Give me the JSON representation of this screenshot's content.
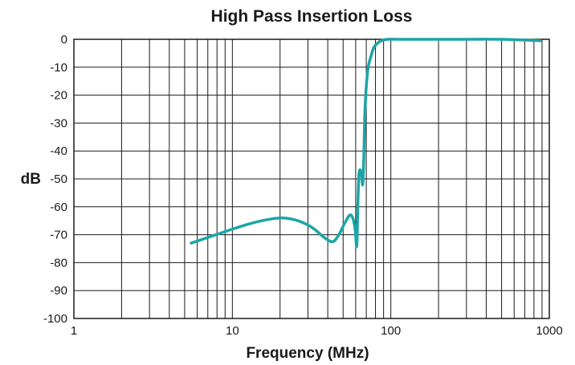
{
  "chart_data": {
    "type": "line",
    "title": "High Pass Insertion Loss",
    "xlabel": "Frequency (MHz)",
    "ylabel": "dB",
    "x_scale": "log",
    "xlim": [
      1,
      1000
    ],
    "ylim": [
      -100,
      0
    ],
    "grid": true,
    "x_ticks": [
      1,
      10,
      100,
      1000
    ],
    "x_tick_labels": [
      "1",
      "10",
      "100",
      "1000"
    ],
    "y_ticks": [
      0,
      -10,
      -20,
      -30,
      -40,
      -50,
      -60,
      -70,
      -80,
      -90,
      -100
    ],
    "y_tick_labels": [
      "0",
      "-10",
      "-20",
      "-30",
      "-40",
      "-50",
      "-60",
      "-70",
      "-80",
      "-90",
      "-100"
    ],
    "series": [
      {
        "color": "#1aa6a6",
        "x": [
          5.5,
          7,
          10,
          13,
          17,
          21,
          26,
          32,
          38,
          43,
          47,
          51,
          55,
          57.5,
          59.5,
          61,
          62,
          63,
          64.5,
          65.5,
          66.5,
          67.5,
          68.5,
          70,
          72,
          75,
          78,
          82,
          87,
          95,
          110,
          150,
          250,
          500,
          880
        ],
        "y": [
          -73,
          -71,
          -68,
          -66,
          -64.5,
          -64,
          -65,
          -67.5,
          -71,
          -72.5,
          -70,
          -66,
          -63,
          -64,
          -68,
          -74,
          -58,
          -48,
          -47,
          -49,
          -52,
          -43,
          -27,
          -17,
          -10,
          -6,
          -3,
          -1.5,
          -0.5,
          0,
          0,
          0,
          0,
          0,
          -0.5
        ]
      }
    ]
  }
}
